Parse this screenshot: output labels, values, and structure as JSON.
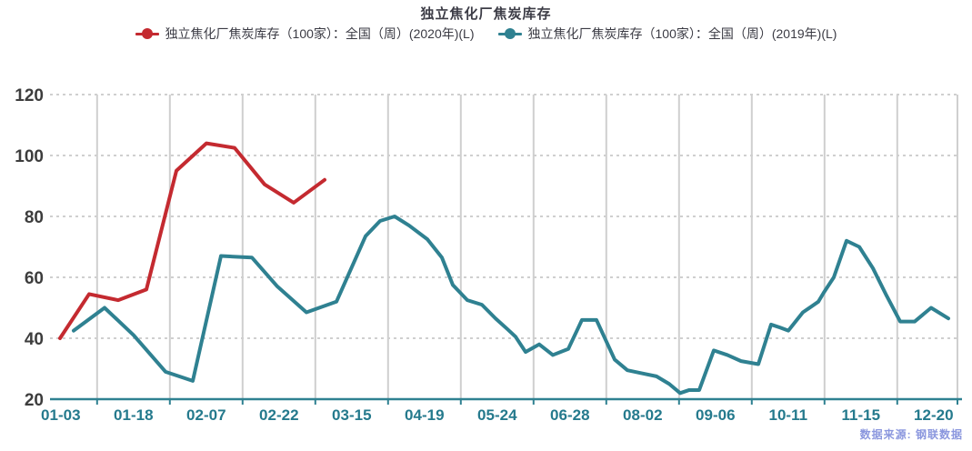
{
  "title": "独立焦化厂焦炭库存",
  "legend": [
    {
      "label": "独立焦化厂焦炭库存（100家）：全国（周）(2020年)(L)",
      "color": "#c42a30",
      "marker": "line-dot"
    },
    {
      "label": "独立焦化厂焦炭库存（100家）：全国（周）(2019年)(L)",
      "color": "#2f8191",
      "marker": "line-dot"
    }
  ],
  "source_note": "数据来源: 钢联数据",
  "colors": {
    "series_2020": "#c42a30",
    "series_2019": "#2f8191",
    "axis_line": "#2f8191",
    "x_tick_label": "#257a8d",
    "y_tick_label": "#3d3d3d",
    "gridline": "#cfcfcf",
    "title_text": "#3c3c46",
    "source_text": "#8b97de",
    "background": "#ffffff"
  },
  "chart_data": {
    "type": "line",
    "title": "独立焦化厂焦炭库存",
    "xlabel": "",
    "ylabel": "",
    "ylim": [
      20,
      120
    ],
    "y_ticks": [
      20,
      40,
      60,
      80,
      100,
      120
    ],
    "x_tick_labels": [
      "01-03",
      "01-18",
      "02-07",
      "02-22",
      "03-15",
      "04-19",
      "05-24",
      "06-28",
      "08-02",
      "09-06",
      "10-11",
      "11-15",
      "12-20"
    ],
    "grid": {
      "horizontal": "dashed",
      "vertical": "solid"
    },
    "legend_position": "top",
    "x_unit": "px",
    "series": [
      {
        "name": "独立焦化厂焦炭库存（100家）：全国（周）(2020年)(L)",
        "color": "#c42a30",
        "points": [
          [
            66,
            40
          ],
          [
            98,
            54.5
          ],
          [
            130,
            52.5
          ],
          [
            161,
            56
          ],
          [
            194,
            95
          ],
          [
            227,
            104
          ],
          [
            258,
            102.5
          ],
          [
            291,
            90.5
          ],
          [
            323,
            84.5
          ],
          [
            357,
            92
          ]
        ]
      },
      {
        "name": "独立焦化厂焦炭库存（100家）：全国（周）(2019年)(L)",
        "color": "#2f8191",
        "points": [
          [
            81,
            42.5
          ],
          [
            115,
            50
          ],
          [
            147,
            41
          ],
          [
            182,
            29
          ],
          [
            212,
            26
          ],
          [
            243,
            67
          ],
          [
            277,
            66.5
          ],
          [
            305,
            57
          ],
          [
            337,
            48.5
          ],
          [
            370,
            52
          ],
          [
            402,
            73.5
          ],
          [
            418,
            78.5
          ],
          [
            434,
            80
          ],
          [
            450,
            77
          ],
          [
            470,
            72.5
          ],
          [
            486,
            66.5
          ],
          [
            498,
            57.5
          ],
          [
            514,
            52.5
          ],
          [
            530,
            51
          ],
          [
            545,
            46.5
          ],
          [
            558,
            43
          ],
          [
            567,
            40.5
          ],
          [
            578,
            35.5
          ],
          [
            593,
            38
          ],
          [
            608,
            34.5
          ],
          [
            625,
            36.5
          ],
          [
            640,
            46
          ],
          [
            656,
            46
          ],
          [
            676,
            33
          ],
          [
            690,
            29.5
          ],
          [
            706,
            28.5
          ],
          [
            722,
            27.5
          ],
          [
            736,
            25
          ],
          [
            748,
            22
          ],
          [
            758,
            23
          ],
          [
            769,
            23
          ],
          [
            785,
            36
          ],
          [
            800,
            34.5
          ],
          [
            815,
            32.5
          ],
          [
            834,
            31.5
          ],
          [
            848,
            44.5
          ],
          [
            858,
            43.5
          ],
          [
            867,
            42.5
          ],
          [
            883,
            48.5
          ],
          [
            900,
            52
          ],
          [
            906,
            55
          ],
          [
            917,
            60
          ],
          [
            931,
            72
          ],
          [
            945,
            70
          ],
          [
            960,
            63
          ],
          [
            975,
            54
          ],
          [
            990,
            45.5
          ],
          [
            1006,
            45.5
          ],
          [
            1024,
            50
          ],
          [
            1043,
            46.5
          ]
        ]
      }
    ]
  }
}
